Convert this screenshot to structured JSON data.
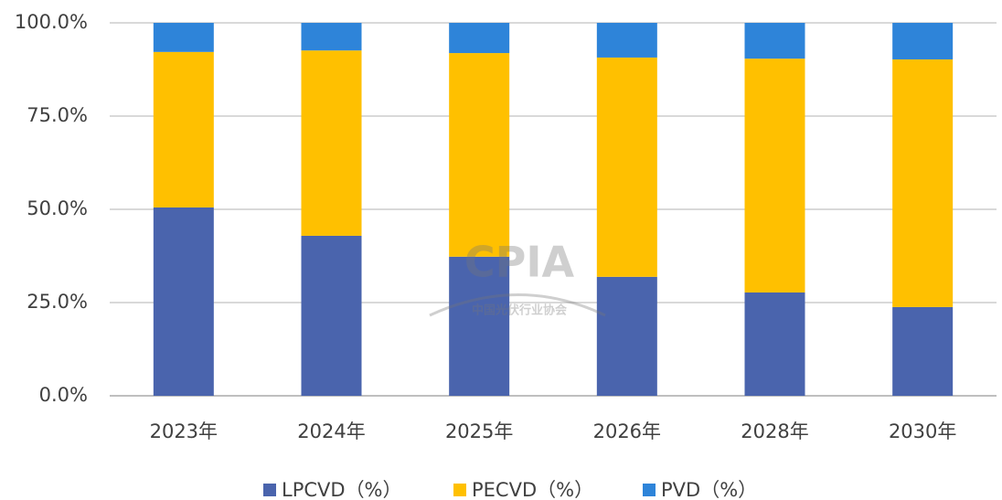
{
  "chart_data": {
    "type": "stacked_bar",
    "categories": [
      "2023年",
      "2024年",
      "2025年",
      "2026年",
      "2028年",
      "2030年"
    ],
    "series": [
      {
        "name": "LPCVD（%）",
        "color": "#4a64ad",
        "values": [
          50.5,
          42.9,
          37.3,
          31.9,
          27.7,
          23.8
        ]
      },
      {
        "name": "PECVD（%）",
        "color": "#ffc000",
        "values": [
          41.7,
          49.7,
          54.6,
          58.8,
          62.7,
          66.4
        ]
      },
      {
        "name": "PVD（%）",
        "color": "#2e84d9",
        "values": [
          7.8,
          7.4,
          8.1,
          9.3,
          9.6,
          9.8
        ]
      }
    ],
    "ylim": [
      0,
      100
    ],
    "yticks": [
      {
        "value": 0,
        "label": "0.0%"
      },
      {
        "value": 25,
        "label": "25.0%"
      },
      {
        "value": 50,
        "label": "50.0%"
      },
      {
        "value": 75,
        "label": "75.0%"
      },
      {
        "value": 100,
        "label": "100.0%"
      }
    ],
    "grid": true,
    "legend": "bottom",
    "watermark": {
      "logo": "CPIA",
      "name": "中国光伏行业协会"
    }
  }
}
